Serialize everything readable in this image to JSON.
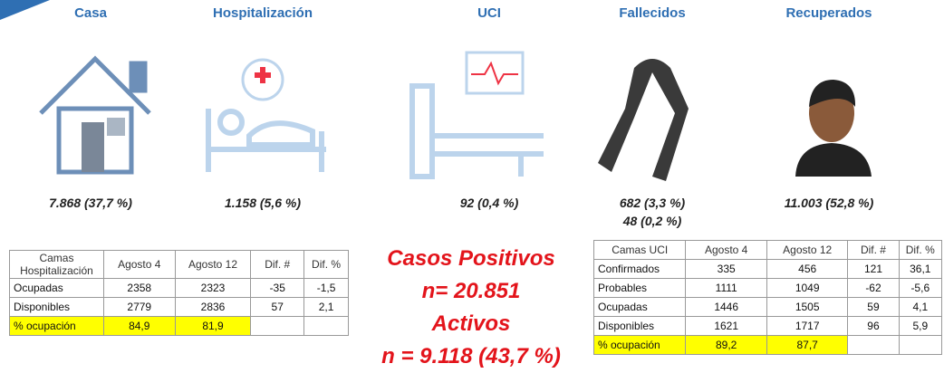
{
  "panels": [
    {
      "title": "Casa",
      "values": [
        "7.868 (37,7 %)"
      ]
    },
    {
      "title": "Hospitalización",
      "values": [
        "1.158 (5,6 %)"
      ]
    },
    {
      "title": "UCI",
      "values": [
        "92 (0,4 %)"
      ]
    },
    {
      "title": "Fallecidos",
      "values": [
        "682 (3,3 %)",
        "48 (0,2 %)"
      ]
    },
    {
      "title": "Recuperados",
      "values": [
        "11.003 (52,8 %)"
      ]
    }
  ],
  "center": [
    "Casos Positivos",
    "n= 20.851",
    "Activos",
    "n = 9.118 (43,7 %)"
  ],
  "table_hosp": {
    "header": [
      "Camas Hospitalización",
      "Agosto 4",
      "Agosto 12",
      "Dif. #",
      "Dif. %"
    ],
    "rows": [
      [
        "Ocupadas",
        "2358",
        "2323",
        "-35",
        "-1,5"
      ],
      [
        "Disponibles",
        "2779",
        "2836",
        "57",
        "2,1"
      ],
      [
        "% ocupación",
        "84,9",
        "81,9"
      ]
    ]
  },
  "table_uci": {
    "header": [
      "Camas UCI",
      "Agosto 4",
      "Agosto 12",
      "Dif. #",
      "Dif. %"
    ],
    "rows": [
      [
        "Confirmados",
        "335",
        "456",
        "121",
        "36,1"
      ],
      [
        "Probables",
        "1111",
        "1049",
        "-62",
        "-5,6"
      ],
      [
        "Ocupadas",
        "1446",
        "1505",
        "59",
        "4,1"
      ],
      [
        "Disponibles",
        "1621",
        "1717",
        "96",
        "5,9"
      ],
      [
        "% ocupación",
        "89,2",
        "87,7"
      ]
    ]
  }
}
